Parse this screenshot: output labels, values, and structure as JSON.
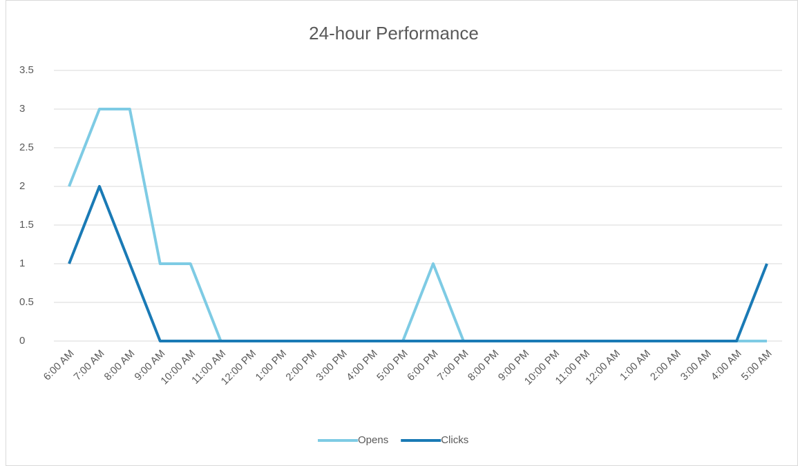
{
  "chart_data": {
    "type": "line",
    "title": "24-hour Performance",
    "categories": [
      "6:00 AM",
      "7:00 AM",
      "8:00 AM",
      "9:00 AM",
      "10:00 AM",
      "11:00 AM",
      "12:00 PM",
      "1:00 PM",
      "2:00 PM",
      "3:00 PM",
      "4:00 PM",
      "5:00 PM",
      "6:00 PM",
      "7:00 PM",
      "8:00 PM",
      "9:00 PM",
      "10:00 PM",
      "11:00 PM",
      "12:00 AM",
      "1:00 AM",
      "2:00 AM",
      "3:00 AM",
      "4:00 AM",
      "5:00 AM"
    ],
    "series": [
      {
        "name": "Opens",
        "color": "#7ecbe4",
        "values": [
          2,
          3,
          3,
          1,
          1,
          0,
          0,
          0,
          0,
          0,
          0,
          0,
          1,
          0,
          0,
          0,
          0,
          0,
          0,
          0,
          0,
          0,
          0,
          0
        ]
      },
      {
        "name": "Clicks",
        "color": "#1a7ab5",
        "values": [
          1,
          2,
          1,
          0,
          0,
          0,
          0,
          0,
          0,
          0,
          0,
          0,
          0,
          0,
          0,
          0,
          0,
          0,
          0,
          0,
          0,
          0,
          0,
          1
        ]
      }
    ],
    "ylim": [
      0,
      3.5
    ],
    "yticks": [
      0,
      0.5,
      1,
      1.5,
      2,
      2.5,
      3,
      3.5
    ],
    "grid": true,
    "legend": "bottom"
  }
}
